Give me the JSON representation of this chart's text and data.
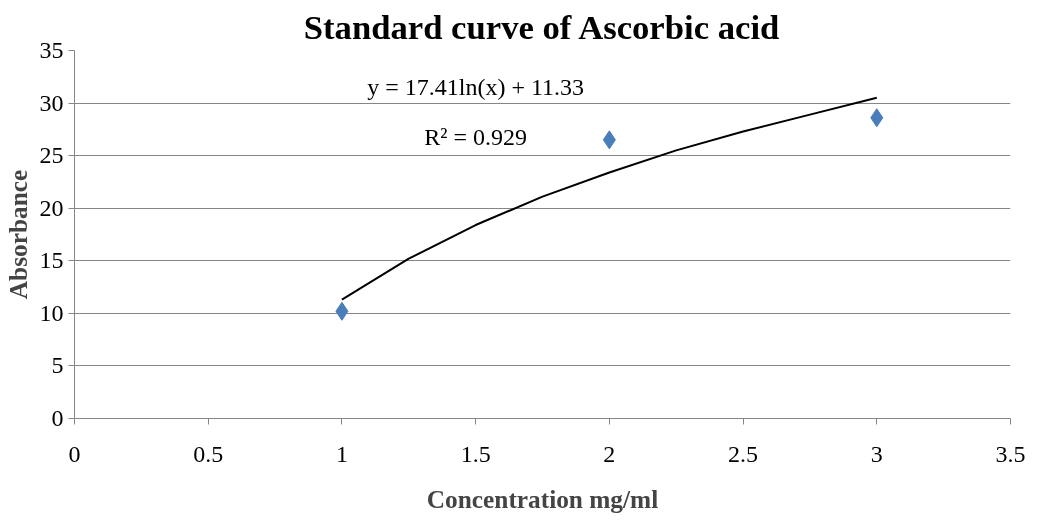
{
  "chart_data": {
    "type": "scatter",
    "title": "Standard curve of Ascorbic acid",
    "xlabel": "Concentration mg/ml",
    "ylabel": "Absorbance",
    "xlim": [
      0,
      3.5
    ],
    "xticks": [
      0,
      0.5,
      1,
      1.5,
      2,
      2.5,
      3,
      3.5
    ],
    "ylim": [
      0,
      35
    ],
    "yticks": [
      0,
      5,
      10,
      15,
      20,
      25,
      30,
      35
    ],
    "grid": "y",
    "series": [
      {
        "color": "#4a7ebb",
        "marker": "diamond",
        "x": [
          1,
          2,
          3
        ],
        "values": [
          10.2,
          26.5,
          28.6
        ]
      },
      {
        "type": "line",
        "color": "#000000",
        "line_style": "solid",
        "marker": "none",
        "x": [
          1,
          1.25,
          1.5,
          1.75,
          2,
          2.25,
          2.5,
          2.75,
          3
        ],
        "values": [
          11.3,
          15.2,
          18.4,
          21.1,
          23.4,
          25.5,
          27.3,
          28.9,
          30.5
        ]
      }
    ],
    "annotations": [
      "y = 17.41ln(x) + 11.33",
      "R² = 0.929"
    ]
  }
}
